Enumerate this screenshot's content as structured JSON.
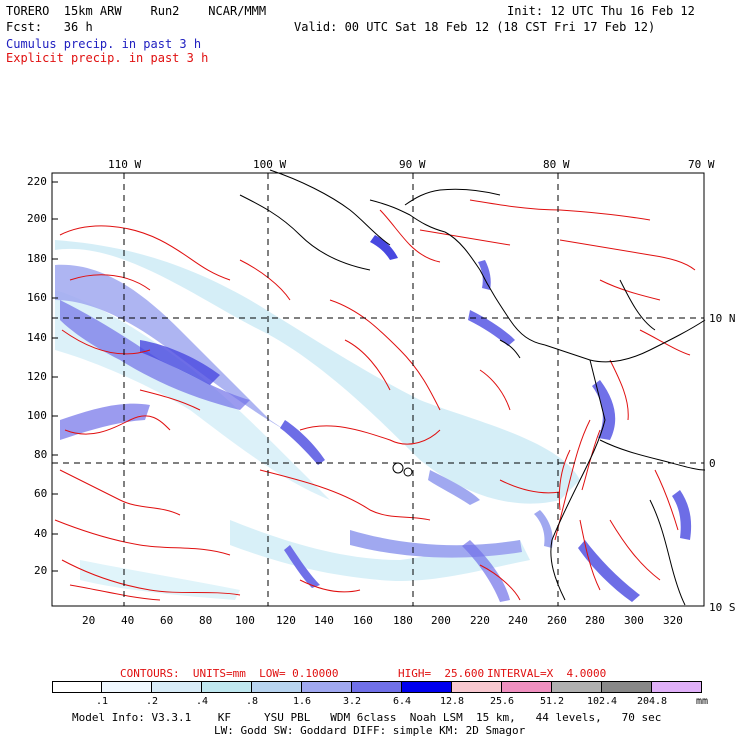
{
  "header": {
    "model": "TORERO  15km ARW    Run2    NCAR/MMM",
    "init": "Init: 12 UTC Thu 16 Feb 12",
    "fcst": "Fcst:   36 h",
    "valid": "Valid: 00 UTC Sat 18 Feb 12 (18 CST Fri 17 Feb 12)",
    "cumulus": "Cumulus precip. in past 3 h",
    "explicit": "Explicit precip. in past 3 h"
  },
  "map": {
    "lon_labels": [
      "110 W",
      "100 W",
      "90 W",
      "80 W",
      "70 W"
    ],
    "lat_labels": [
      "10 N",
      "0",
      "10 S"
    ],
    "y_ticks": [
      "220",
      "200",
      "180",
      "160",
      "140",
      "120",
      "100",
      "80",
      "60",
      "40",
      "20"
    ],
    "x_ticks": [
      "20",
      "40",
      "60",
      "80",
      "100",
      "120",
      "140",
      "160",
      "180",
      "200",
      "220",
      "240",
      "260",
      "280",
      "300",
      "320"
    ]
  },
  "contours": {
    "label": "CONTOURS:  UNITS=mm  LOW= 0.10000",
    "high": "HIGH=  25.600",
    "interval": "INTERVAL=X  4.0000"
  },
  "colorbar": {
    "labels": [
      ".1",
      ".2",
      ".4",
      ".8",
      "1.6",
      "3.2",
      "6.4",
      "12.8",
      "25.6",
      "51.2",
      "102.4",
      "204.8"
    ],
    "unit": "mm",
    "colors": [
      "#ffffff",
      "#f0f8ff",
      "#d8ecf8",
      "#c0e8f0",
      "#b8d4f0",
      "#a0a8f0",
      "#7070e8",
      "#4848e0",
      "#0000ee",
      "#f8c8d0",
      "#f090c0",
      "#b0b0b0",
      "#888888",
      "#e0b0f8"
    ]
  },
  "footer": {
    "line1": "Model Info: V3.3.1    KF     YSU PBL   WDM 6class  Noah LSM  15 km,   44 levels,   70 sec",
    "line2": "LW: Godd SW: Goddard DIFF: simple KM: 2D Smagor"
  }
}
